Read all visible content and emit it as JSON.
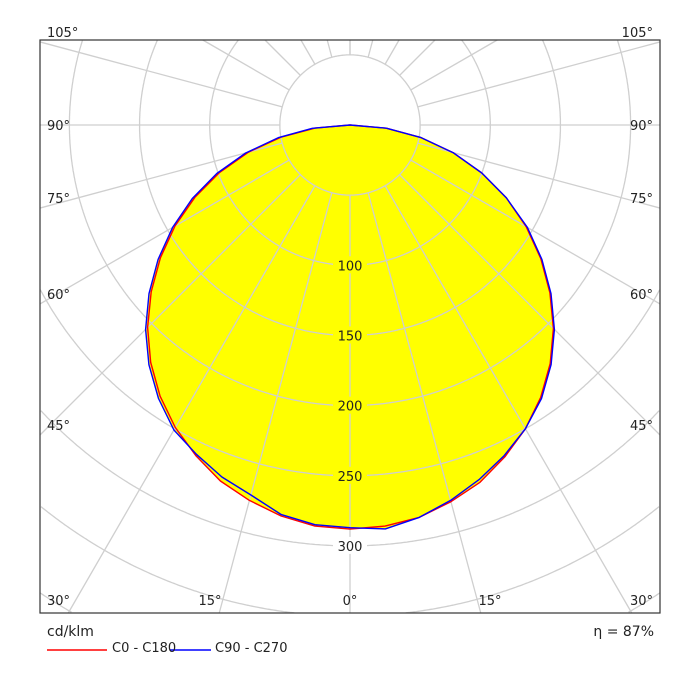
{
  "chart_data": {
    "type": "polar",
    "unit_label": "cd/klm",
    "efficiency_label": "η = 87%",
    "radial_ticks": [
      100,
      150,
      200,
      250,
      300
    ],
    "radial_rings": [
      50,
      100,
      150,
      200,
      250,
      300,
      350,
      400,
      450,
      500
    ],
    "angle_step_deg": 15,
    "angle_labels_left": [
      "105°",
      "90°",
      "75°",
      "60°",
      "45°",
      "30°"
    ],
    "angle_labels_bottom": [
      "15°",
      "0°",
      "15°",
      "30°"
    ],
    "fill_color": "#ffff00",
    "grid": true,
    "angles_deg": [
      0,
      5,
      10,
      15,
      20,
      25,
      30,
      35,
      40,
      45,
      50,
      55,
      60,
      65,
      70,
      75,
      80,
      85,
      90
    ],
    "series": [
      {
        "name": "C0 - C180",
        "color": "#ff0000",
        "values_right": [
          288,
          287,
          284,
          278,
          271,
          261,
          250,
          237,
          222,
          205,
          186,
          166,
          145,
          123,
          100,
          76,
          51,
          26,
          0
        ],
        "values_left": [
          288,
          287,
          283,
          277,
          270,
          260,
          249,
          236,
          221,
          204,
          185,
          165,
          144,
          122,
          99,
          75,
          50,
          25,
          0
        ]
      },
      {
        "name": "C90 - C270",
        "color": "#0000ff",
        "values_right": [
          287,
          289,
          284,
          277,
          269,
          260,
          250,
          238,
          223,
          206,
          187,
          167,
          146,
          123,
          100,
          76,
          51,
          26,
          0
        ],
        "values_left": [
          287,
          286,
          282,
          273,
          267,
          259,
          251,
          238,
          223,
          206,
          187,
          167,
          146,
          124,
          101,
          77,
          52,
          27,
          0
        ]
      }
    ]
  }
}
